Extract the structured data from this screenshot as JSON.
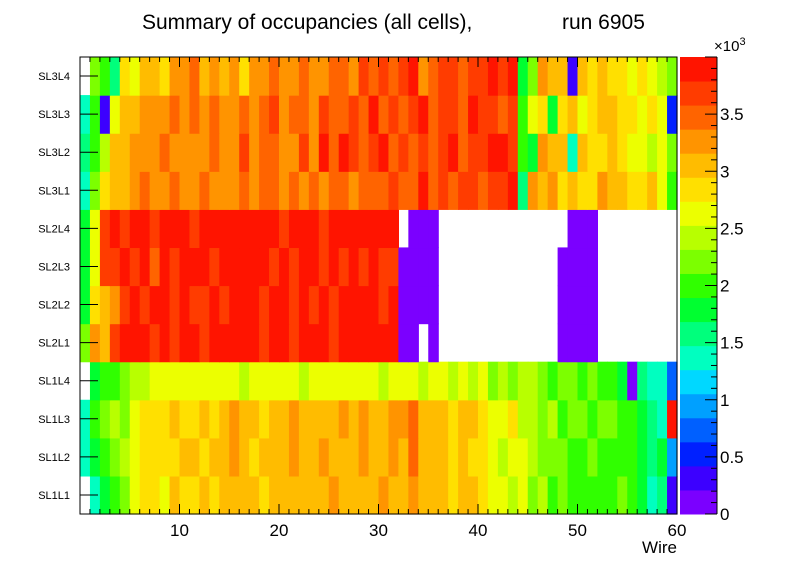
{
  "chart_data": {
    "type": "heatmap",
    "title_left": "Summary of occupancies (all cells),",
    "title_right": "run 6905",
    "xlabel": "Wire",
    "x_range": [
      0,
      60
    ],
    "x_ticks": [
      10,
      20,
      30,
      40,
      50,
      60
    ],
    "y_labels": [
      "SL1L1",
      "SL1L2",
      "SL1L3",
      "SL1L4",
      "SL2L1",
      "SL2L2",
      "SL2L3",
      "SL2L4",
      "SL3L1",
      "SL3L2",
      "SL3L3",
      "SL3L4"
    ],
    "z_range": [
      0,
      4000
    ],
    "z_ticks": [
      {
        "value": 0,
        "label": "0"
      },
      {
        "value": 500,
        "label": "0.5"
      },
      {
        "value": 1000,
        "label": "1"
      },
      {
        "value": 1500,
        "label": "1.5"
      },
      {
        "value": 2000,
        "label": "2"
      },
      {
        "value": 2500,
        "label": "2.5"
      },
      {
        "value": 3000,
        "label": "3"
      },
      {
        "value": 3500,
        "label": "3.5"
      }
    ],
    "z_multiplier": "×10",
    "z_exponent": "3",
    "palette": [
      "#7b00ff",
      "#3c00ff",
      "#0020ff",
      "#0060ff",
      "#00a0ff",
      "#00d8ff",
      "#00ffc0",
      "#00ff7c",
      "#00ff30",
      "#30ff00",
      "#7cff00",
      "#b8ff00",
      "#ecff00",
      "#ffe000",
      "#ffbc00",
      "#ff9400",
      "#ff6400",
      "#ff3c00",
      "#ff1400"
    ],
    "rows": [
      [
        null,
        1400,
        1700,
        2000,
        2300,
        2600,
        2900,
        2900,
        2700,
        3000,
        2800,
        2900,
        3000,
        2900,
        3000,
        3100,
        3000,
        3100,
        2900,
        3000,
        3100,
        3000,
        3100,
        3000,
        3100,
        3200,
        3100,
        3000,
        3100,
        3000,
        3200,
        3100,
        3000,
        3200,
        3100,
        3000,
        3100,
        2900,
        3000,
        3100,
        2800,
        2700,
        2600,
        2500,
        2600,
        2300,
        2400,
        2100,
        2200,
        2100,
        2000,
        2100,
        2000,
        2000,
        2200,
        2000,
        1700,
        1400,
        1600,
        400
      ],
      [
        1400,
        1700,
        2100,
        2300,
        2400,
        2700,
        2800,
        2900,
        2800,
        2900,
        3000,
        3000,
        2900,
        3100,
        3000,
        3200,
        3000,
        2900,
        3100,
        3000,
        3100,
        3200,
        3000,
        3100,
        3200,
        3100,
        3000,
        3100,
        3300,
        3100,
        3000,
        3200,
        3100,
        3400,
        3100,
        3000,
        3100,
        2900,
        3000,
        2800,
        2900,
        2600,
        2500,
        2600,
        2700,
        2400,
        2300,
        2200,
        2300,
        2100,
        2000,
        2200,
        2100,
        2100,
        2000,
        1900,
        1700,
        1500,
        1800,
        1000
      ],
      [
        1300,
        2000,
        2200,
        2400,
        2300,
        2700,
        2900,
        2800,
        2900,
        3000,
        2900,
        2800,
        3000,
        2900,
        3000,
        3200,
        3000,
        3100,
        2900,
        3100,
        3000,
        3300,
        3000,
        3100,
        3000,
        3100,
        3200,
        3000,
        3300,
        3000,
        3100,
        3300,
        3200,
        3400,
        3000,
        3100,
        3000,
        2900,
        3000,
        3100,
        2800,
        2700,
        2600,
        2800,
        2500,
        2400,
        2300,
        2400,
        2100,
        2300,
        2200,
        2100,
        2300,
        2200,
        2100,
        2000,
        1800,
        1600,
        1400,
        3800
      ],
      [
        null,
        1700,
        2000,
        2100,
        2200,
        2400,
        2500,
        2600,
        2700,
        2600,
        2600,
        2700,
        2600,
        2700,
        2600,
        2700,
        2400,
        2600,
        2700,
        2600,
        2700,
        2600,
        2500,
        2600,
        2700,
        2600,
        2700,
        2600,
        2700,
        2600,
        2500,
        2600,
        2600,
        2700,
        2500,
        2600,
        2600,
        2500,
        2600,
        2500,
        2600,
        2300,
        2400,
        2300,
        2400,
        2500,
        2200,
        2100,
        2300,
        2200,
        2100,
        2200,
        2100,
        1900,
        1800,
        200,
        1500,
        1400,
        1300,
        700
      ],
      [
        2200,
        3200,
        3000,
        3700,
        3800,
        3800,
        3800,
        3700,
        3800,
        3700,
        3800,
        3900,
        3700,
        3800,
        3900,
        3800,
        3900,
        3800,
        3700,
        3900,
        3800,
        3700,
        3800,
        3900,
        3800,
        3700,
        3800,
        3900,
        3800,
        3800,
        3800,
        3900,
        200,
        200,
        null,
        200,
        null,
        null,
        null,
        null,
        null,
        null,
        null,
        null,
        null,
        null,
        null,
        null,
        200,
        200,
        200,
        200,
        null,
        null,
        null,
        null,
        null,
        null,
        null,
        null
      ],
      [
        1700,
        2800,
        3000,
        3200,
        3700,
        3800,
        3700,
        3800,
        3900,
        3700,
        3800,
        3700,
        3600,
        3800,
        3700,
        3800,
        3900,
        3800,
        3700,
        3900,
        3800,
        3700,
        3800,
        3700,
        3800,
        3700,
        3800,
        3800,
        3900,
        3800,
        3700,
        3800,
        200,
        200,
        200,
        200,
        null,
        null,
        null,
        null,
        null,
        null,
        null,
        null,
        null,
        null,
        null,
        null,
        200,
        200,
        200,
        200,
        null,
        null,
        null,
        null,
        null,
        null,
        null,
        null
      ],
      [
        1700,
        2600,
        3600,
        3700,
        3800,
        3700,
        3800,
        3500,
        3800,
        3700,
        3800,
        3900,
        3800,
        3700,
        3900,
        3800,
        3800,
        3900,
        3800,
        3700,
        3800,
        3700,
        3900,
        3800,
        3700,
        3800,
        3700,
        3800,
        3700,
        3800,
        3700,
        3700,
        200,
        200,
        200,
        200,
        null,
        null,
        null,
        null,
        null,
        null,
        null,
        null,
        null,
        null,
        null,
        null,
        200,
        200,
        200,
        200,
        null,
        null,
        null,
        null,
        null,
        null,
        null,
        null
      ],
      [
        1700,
        2700,
        3600,
        3800,
        3700,
        3800,
        3900,
        3700,
        3800,
        3800,
        3800,
        3700,
        3800,
        3900,
        3800,
        3900,
        3800,
        3800,
        3900,
        3800,
        3700,
        3800,
        3900,
        3800,
        3700,
        3800,
        3800,
        3900,
        3800,
        3800,
        3800,
        3900,
        null,
        200,
        200,
        200,
        null,
        null,
        null,
        null,
        null,
        null,
        null,
        null,
        null,
        null,
        null,
        null,
        null,
        200,
        200,
        200,
        null,
        null,
        null,
        null,
        null,
        null,
        null,
        null
      ],
      [
        1300,
        2200,
        2800,
        3000,
        3000,
        3200,
        3400,
        3200,
        3300,
        3400,
        3200,
        3300,
        3400,
        3300,
        3200,
        3300,
        3400,
        3300,
        3500,
        3400,
        3300,
        3400,
        3300,
        3400,
        3300,
        3500,
        3400,
        3300,
        3400,
        3500,
        3400,
        3600,
        3400,
        3500,
        3800,
        3400,
        3600,
        3500,
        3700,
        3600,
        3500,
        3700,
        3600,
        3900,
        1500,
        3300,
        3100,
        3200,
        2900,
        3000,
        2900,
        2800,
        3300,
        3100,
        3000,
        2900,
        2800,
        3000,
        2700,
        2000
      ],
      [
        1500,
        2100,
        2400,
        3000,
        3100,
        3200,
        3300,
        3200,
        3400,
        3300,
        3200,
        3300,
        3200,
        3400,
        3300,
        3200,
        3600,
        3300,
        3400,
        3500,
        3300,
        3200,
        3600,
        3300,
        3800,
        3400,
        3900,
        3600,
        3400,
        3600,
        3800,
        3400,
        3600,
        3500,
        3700,
        3500,
        3600,
        3800,
        3500,
        3700,
        3600,
        3900,
        3800,
        3600,
        2100,
        1800,
        3300,
        3000,
        3100,
        1300,
        3100,
        2900,
        2800,
        3000,
        2800,
        2700,
        2600,
        2500,
        2600,
        2200
      ],
      [
        1300,
        2000,
        400,
        2600,
        3000,
        3100,
        3200,
        3300,
        3200,
        3400,
        3300,
        3500,
        3200,
        3400,
        3300,
        3200,
        3400,
        3300,
        3500,
        3600,
        3300,
        3400,
        3500,
        3300,
        3600,
        3500,
        3400,
        3600,
        3500,
        3800,
        3400,
        3700,
        3500,
        3600,
        3800,
        3500,
        3600,
        3700,
        3500,
        3800,
        3600,
        3700,
        3500,
        3600,
        2000,
        2600,
        2900,
        1700,
        2800,
        3000,
        2700,
        2800,
        3100,
        3000,
        2900,
        2800,
        2700,
        2900,
        2600,
        500
      ],
      [
        null,
        2300,
        2100,
        1500,
        2900,
        2600,
        3000,
        3100,
        2900,
        3300,
        3200,
        3400,
        3100,
        3300,
        3100,
        3200,
        2900,
        3300,
        3200,
        3400,
        3300,
        3200,
        3500,
        3300,
        3300,
        3500,
        3400,
        3300,
        3600,
        3500,
        3700,
        3500,
        3600,
        3800,
        3300,
        3500,
        3700,
        3600,
        3400,
        3700,
        3600,
        3800,
        3700,
        3900,
        1800,
        2200,
        3200,
        3000,
        3100,
        300,
        3000,
        2800,
        3000,
        2900,
        2800,
        2700,
        2800,
        2600,
        2400,
        2200
      ]
    ]
  }
}
